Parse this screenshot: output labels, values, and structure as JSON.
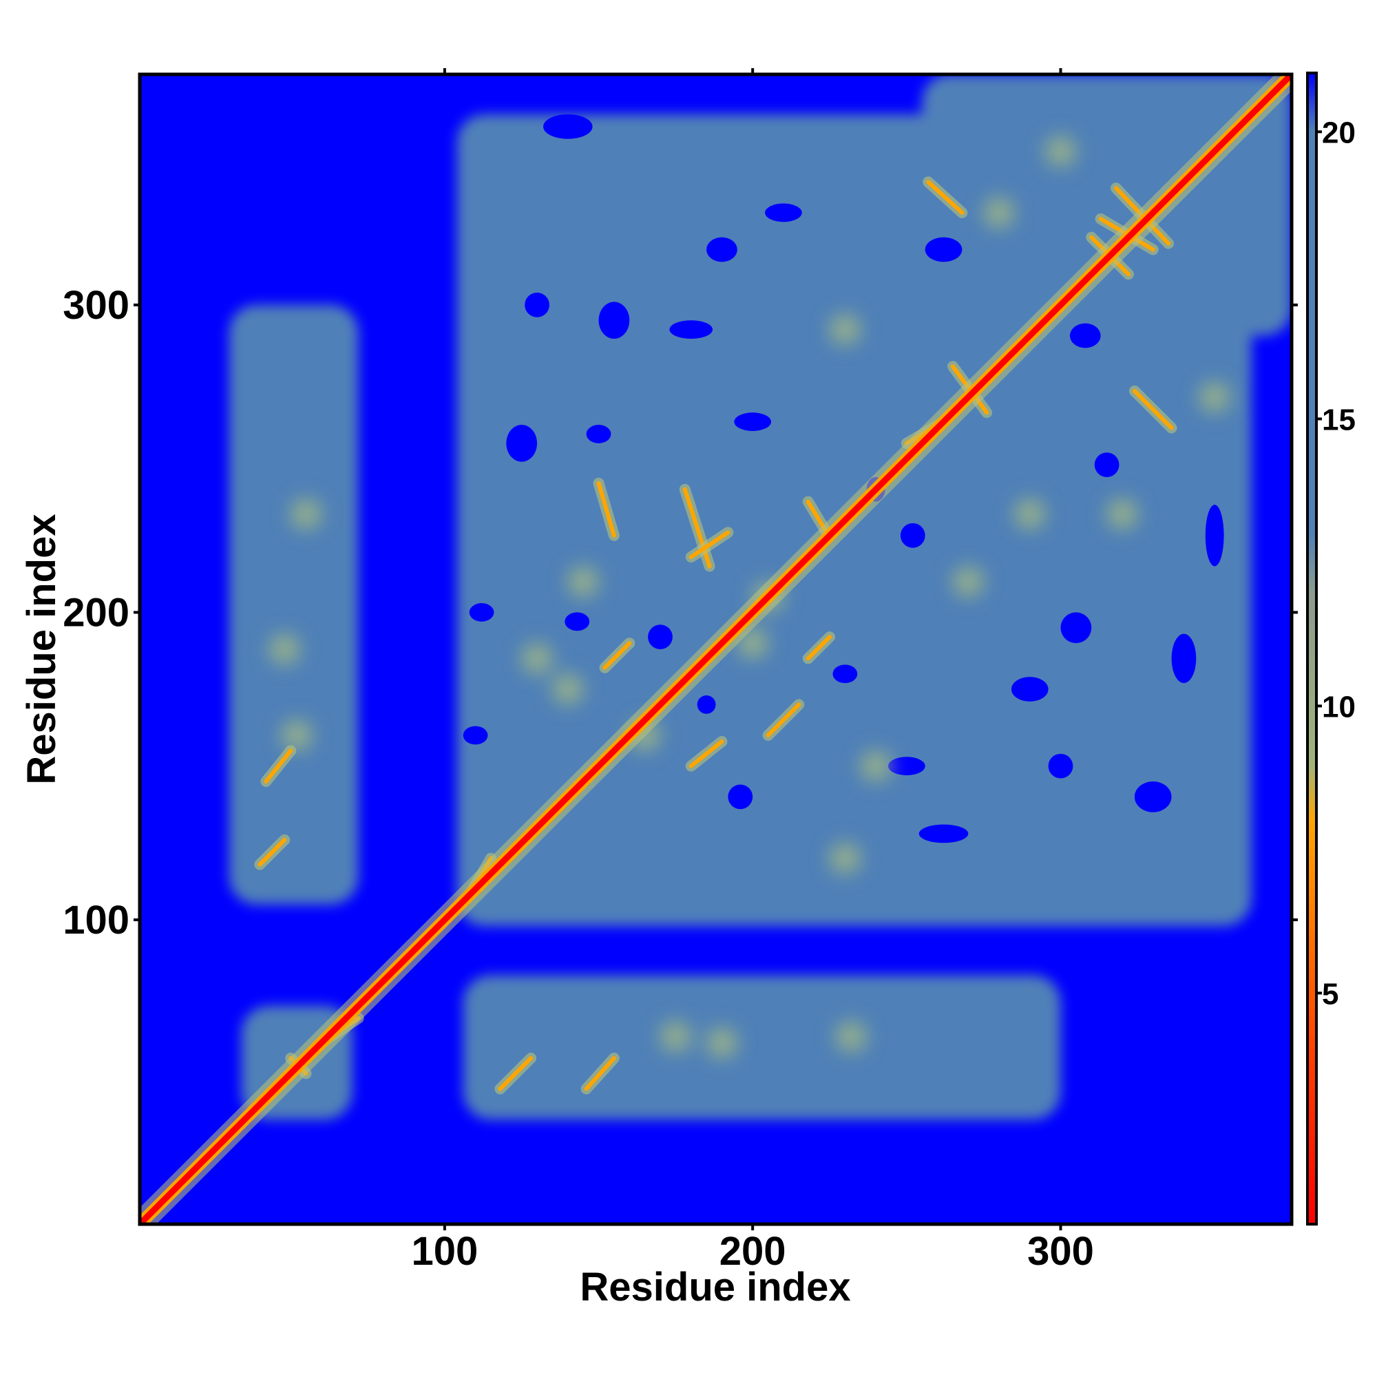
{
  "chart_data": {
    "type": "heatmap",
    "title": "",
    "xlabel": "Residue index",
    "ylabel": "Residue index",
    "xlim": [
      1,
      375
    ],
    "ylim": [
      1,
      375
    ],
    "x_ticks": [
      100,
      200,
      300
    ],
    "x_tick_labels": [
      "100",
      "200",
      "300"
    ],
    "y_ticks": [
      100,
      200,
      300
    ],
    "y_tick_labels": [
      "100",
      "200",
      "300"
    ],
    "colorbar": {
      "range": [
        1,
        21
      ],
      "ticks": [
        5,
        10,
        15,
        20
      ],
      "tick_labels": [
        "5",
        "10",
        "15",
        "20"
      ],
      "stops": [
        {
          "value": 1,
          "color": "#ff0000"
        },
        {
          "value": 4,
          "color": "#ff4000"
        },
        {
          "value": 8,
          "color": "#ffa500"
        },
        {
          "value": 9,
          "color": "#9fb47a"
        },
        {
          "value": 12,
          "color": "#8a9c8e"
        },
        {
          "value": 13,
          "color": "#5080b8"
        },
        {
          "value": 20,
          "color": "#5080b8"
        },
        {
          "value": 21,
          "color": "#0000ff"
        }
      ]
    },
    "background_value": 21,
    "background_color": "#0000ff",
    "mid_color": "#5080b8",
    "contact_color": "#ffa500",
    "diagonal_color": "#ff0000",
    "mid_regions": [
      {
        "x": [
          104,
          362
        ],
        "y": [
          98,
          362
        ]
      },
      {
        "x": [
          255,
          375
        ],
        "y": [
          290,
          375
        ]
      },
      {
        "x": [
          30,
          72
        ],
        "y": [
          105,
          300
        ]
      },
      {
        "x": [
          106,
          300
        ],
        "y": [
          35,
          82
        ]
      },
      {
        "x": [
          34,
          70
        ],
        "y": [
          35,
          72
        ]
      }
    ],
    "blue_holes": [
      {
        "x": 140,
        "y": 358,
        "rx": 8,
        "ry": 4
      },
      {
        "x": 210,
        "y": 330,
        "rx": 6,
        "ry": 3
      },
      {
        "x": 190,
        "y": 318,
        "rx": 5,
        "ry": 4
      },
      {
        "x": 130,
        "y": 300,
        "rx": 4,
        "ry": 4
      },
      {
        "x": 155,
        "y": 295,
        "rx": 5,
        "ry": 6
      },
      {
        "x": 180,
        "y": 292,
        "rx": 7,
        "ry": 3
      },
      {
        "x": 262,
        "y": 318,
        "rx": 6,
        "ry": 4
      },
      {
        "x": 308,
        "y": 290,
        "rx": 5,
        "ry": 4
      },
      {
        "x": 125,
        "y": 255,
        "rx": 5,
        "ry": 6
      },
      {
        "x": 150,
        "y": 258,
        "rx": 4,
        "ry": 3
      },
      {
        "x": 200,
        "y": 262,
        "rx": 6,
        "ry": 3
      },
      {
        "x": 112,
        "y": 200,
        "rx": 4,
        "ry": 3
      },
      {
        "x": 143,
        "y": 197,
        "rx": 4,
        "ry": 3
      },
      {
        "x": 170,
        "y": 192,
        "rx": 4,
        "ry": 4
      },
      {
        "x": 185,
        "y": 170,
        "rx": 3,
        "ry": 3
      },
      {
        "x": 110,
        "y": 160,
        "rx": 4,
        "ry": 3
      },
      {
        "x": 196,
        "y": 140,
        "rx": 4,
        "ry": 4
      },
      {
        "x": 252,
        "y": 225,
        "rx": 4,
        "ry": 4
      },
      {
        "x": 290,
        "y": 175,
        "rx": 6,
        "ry": 4
      },
      {
        "x": 305,
        "y": 195,
        "rx": 5,
        "ry": 5
      },
      {
        "x": 340,
        "y": 185,
        "rx": 4,
        "ry": 8
      },
      {
        "x": 250,
        "y": 150,
        "rx": 6,
        "ry": 3
      },
      {
        "x": 262,
        "y": 128,
        "rx": 8,
        "ry": 3
      },
      {
        "x": 330,
        "y": 140,
        "rx": 6,
        "ry": 5
      },
      {
        "x": 300,
        "y": 150,
        "rx": 4,
        "ry": 4
      },
      {
        "x": 240,
        "y": 240,
        "rx": 3,
        "ry": 4
      },
      {
        "x": 350,
        "y": 225,
        "rx": 3,
        "ry": 10
      },
      {
        "x": 230,
        "y": 180,
        "rx": 4,
        "ry": 3
      },
      {
        "x": 315,
        "y": 248,
        "rx": 4,
        "ry": 4
      }
    ],
    "diagonal": {
      "from": 1,
      "to": 375
    },
    "contact_segments": [
      {
        "x1": 40,
        "y1": 118,
        "x2": 48,
        "y2": 126
      },
      {
        "x1": 42,
        "y1": 145,
        "x2": 50,
        "y2": 155
      },
      {
        "x1": 115,
        "y1": 120,
        "x2": 108,
        "y2": 108
      },
      {
        "x1": 152,
        "y1": 182,
        "x2": 160,
        "y2": 190
      },
      {
        "x1": 180,
        "y1": 150,
        "x2": 190,
        "y2": 158
      },
      {
        "x1": 186,
        "y1": 215,
        "x2": 178,
        "y2": 240
      },
      {
        "x1": 180,
        "y1": 218,
        "x2": 192,
        "y2": 226
      },
      {
        "x1": 218,
        "y1": 185,
        "x2": 225,
        "y2": 192
      },
      {
        "x1": 224,
        "y1": 226,
        "x2": 218,
        "y2": 236
      },
      {
        "x1": 118,
        "y1": 45,
        "x2": 128,
        "y2": 55
      },
      {
        "x1": 146,
        "y1": 45,
        "x2": 155,
        "y2": 55
      },
      {
        "x1": 257,
        "y1": 340,
        "x2": 268,
        "y2": 330
      },
      {
        "x1": 265,
        "y1": 280,
        "x2": 276,
        "y2": 265
      },
      {
        "x1": 313,
        "y1": 328,
        "x2": 330,
        "y2": 318
      },
      {
        "x1": 310,
        "y1": 322,
        "x2": 322,
        "y2": 310
      },
      {
        "x1": 318,
        "y1": 338,
        "x2": 335,
        "y2": 320
      },
      {
        "x1": 324,
        "y1": 272,
        "x2": 336,
        "y2": 260
      },
      {
        "x1": 150,
        "y1": 242,
        "x2": 155,
        "y2": 225
      },
      {
        "x1": 205,
        "y1": 160,
        "x2": 215,
        "y2": 170
      },
      {
        "x1": 250,
        "y1": 255,
        "x2": 262,
        "y2": 262
      },
      {
        "x1": 60,
        "y1": 60,
        "x2": 72,
        "y2": 68
      },
      {
        "x1": 50,
        "y1": 55,
        "x2": 55,
        "y2": 50
      }
    ],
    "greenish_spots": [
      {
        "x": 55,
        "y": 232
      },
      {
        "x": 48,
        "y": 188
      },
      {
        "x": 52,
        "y": 160
      },
      {
        "x": 145,
        "y": 210
      },
      {
        "x": 140,
        "y": 175
      },
      {
        "x": 165,
        "y": 160
      },
      {
        "x": 205,
        "y": 205
      },
      {
        "x": 232,
        "y": 62
      },
      {
        "x": 290,
        "y": 232
      },
      {
        "x": 230,
        "y": 292
      },
      {
        "x": 200,
        "y": 190
      },
      {
        "x": 240,
        "y": 150
      },
      {
        "x": 270,
        "y": 210
      },
      {
        "x": 320,
        "y": 232
      },
      {
        "x": 175,
        "y": 62
      },
      {
        "x": 130,
        "y": 185
      },
      {
        "x": 350,
        "y": 270
      },
      {
        "x": 300,
        "y": 350
      },
      {
        "x": 280,
        "y": 330
      },
      {
        "x": 230,
        "y": 120
      },
      {
        "x": 190,
        "y": 60
      }
    ]
  }
}
